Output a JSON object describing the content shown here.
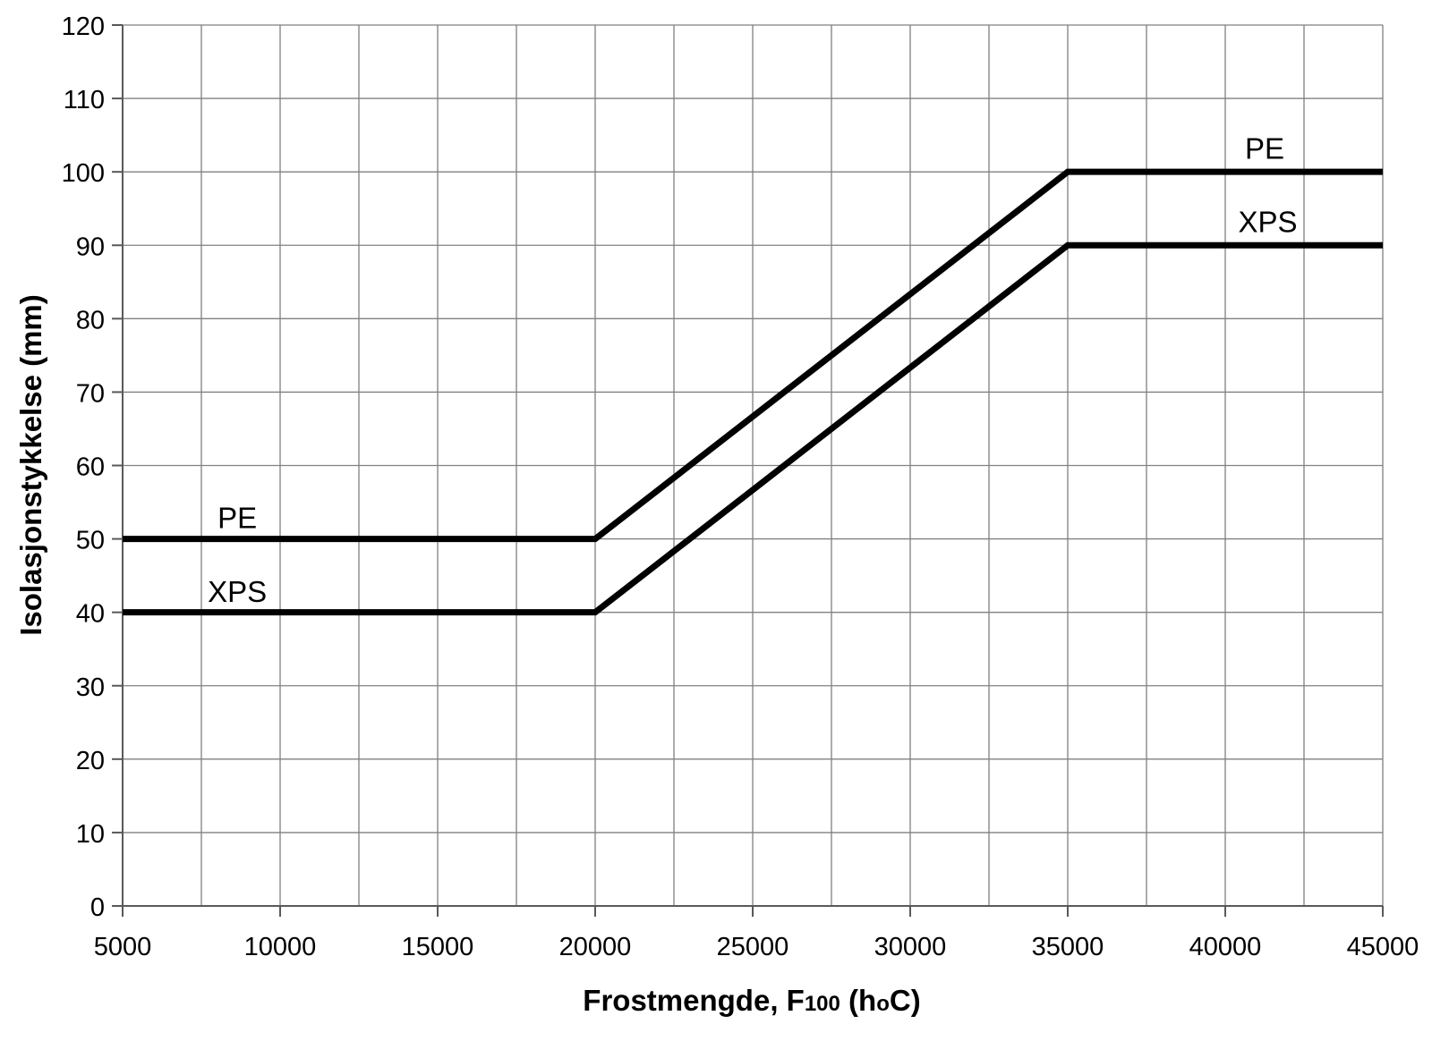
{
  "page": {
    "background": "#ffffff"
  },
  "chart_data": {
    "type": "line",
    "title": "",
    "xlabel": "Frostmengde, F100 (hoC)",
    "xlabel_parts": [
      {
        "text": "Frostmengde, F",
        "small": false
      },
      {
        "text": "100",
        "small": true
      },
      {
        "text": " (h",
        "small": false
      },
      {
        "text": "o",
        "small": true
      },
      {
        "text": "C)",
        "small": false
      }
    ],
    "ylabel": "Isolasjonstykkelse (mm)",
    "x_axis": {
      "min": 5000,
      "max": 45000,
      "tick_step": 5000,
      "grid_step": 2500,
      "tick_labels": [
        "5000",
        "10000",
        "15000",
        "20000",
        "25000",
        "30000",
        "35000",
        "40000",
        "45000"
      ]
    },
    "y_axis": {
      "min": 0,
      "max": 120,
      "tick_step": 10,
      "grid_step": 10,
      "tick_labels": [
        "0",
        "10",
        "20",
        "30",
        "40",
        "50",
        "60",
        "70",
        "80",
        "90",
        "100",
        "110",
        "120"
      ]
    },
    "grid": {
      "show": true,
      "color": "#808080"
    },
    "axis_color": "#595959",
    "text_color": "#000000",
    "legend": "none",
    "series": [
      {
        "name": "PE",
        "color": "#000000",
        "stroke_width": 7,
        "points": [
          [
            5000,
            50
          ],
          [
            20000,
            50
          ],
          [
            35000,
            100
          ],
          [
            45000,
            100
          ]
        ]
      },
      {
        "name": "XPS",
        "color": "#000000",
        "stroke_width": 7,
        "points": [
          [
            5000,
            40
          ],
          [
            20000,
            40
          ],
          [
            35000,
            90
          ],
          [
            45000,
            90
          ]
        ]
      }
    ],
    "annotations": [
      {
        "text": "PE",
        "x": 8640,
        "y": 51.5
      },
      {
        "text": "XPS",
        "x": 8640,
        "y": 41.4
      },
      {
        "text": "PE",
        "x": 41250,
        "y": 101.8
      },
      {
        "text": "XPS",
        "x": 41350,
        "y": 91.8
      }
    ]
  }
}
